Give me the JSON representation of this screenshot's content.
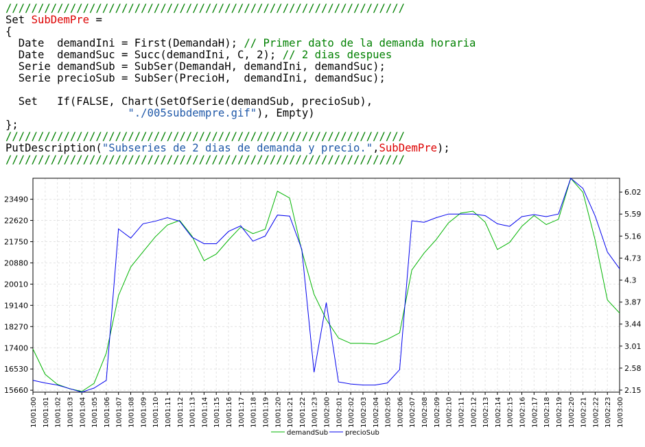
{
  "code": {
    "separator": "//////////////////////////////////////////////////////////////",
    "l1_kw": "Set ",
    "l1_name": "SubDemPre",
    "l1_rest": " =",
    "l2": "{",
    "l3_code": "  Date  demandIni = First(DemandaH); ",
    "l3_comment": "// Primer dato de la demanda horaria",
    "l4_code": "  Date  demandSuc = Succ(demandIni, C, 2); ",
    "l4_comment": "// 2 dias despues",
    "l5": "  Serie demandSub = SubSer(DemandaH, demandIni, demandSuc);",
    "l6": "  Serie precioSub = SubSer(PrecioH,  demandIni, demandSuc);",
    "l7": "",
    "l8": "  Set   If(FALSE, Chart(SetOfSerie(demandSub, precioSub),",
    "l9_indent": "                   ",
    "l9_str": "\"./005subdempre.gif\"",
    "l9_rest": "), Empty)",
    "l10": "};",
    "l12_fn": "PutDescription(",
    "l12_str": "\"Subseries de 2 dias de demanda y precio.\"",
    "l12_comma": ",",
    "l12_name": "SubDemPre",
    "l12_end": ");"
  },
  "colors": {
    "green": "#00b400",
    "blue": "#0000ee",
    "grid": "#e2e2e2"
  },
  "chart_data": {
    "type": "line",
    "x": [
      "10/01:00",
      "10/01:01",
      "10/01:02",
      "10/01:03",
      "10/01:04",
      "10/01:05",
      "10/01:06",
      "10/01:07",
      "10/01:08",
      "10/01:09",
      "10/01:10",
      "10/01:11",
      "10/01:12",
      "10/01:13",
      "10/01:14",
      "10/01:15",
      "10/01:16",
      "10/01:17",
      "10/01:18",
      "10/01:19",
      "10/01:20",
      "10/01:21",
      "10/01:22",
      "10/01:23",
      "10/02:00",
      "10/02:01",
      "10/02:02",
      "10/02:03",
      "10/02:04",
      "10/02:05",
      "10/02:06",
      "10/02:07",
      "10/02:08",
      "10/02:09",
      "10/02:10",
      "10/02:11",
      "10/02:12",
      "10/02:13",
      "10/02:14",
      "10/02:15",
      "10/02:16",
      "10/02:17",
      "10/02:18",
      "10/02:19",
      "10/02:20",
      "10/02:21",
      "10/02:22",
      "10/02:23",
      "10/03:00"
    ],
    "y_left_ticks": [
      "15660",
      "16530",
      "17400",
      "18270",
      "19140",
      "20010",
      "20880",
      "21750",
      "22620",
      "23490"
    ],
    "y_right_ticks": [
      "2.15",
      "2.58",
      "3.01",
      "3.44",
      "3.87",
      "4.3",
      "4.73",
      "5.16",
      "5.59",
      "6.02"
    ],
    "ylim_left": [
      15580,
      24350
    ],
    "ylim_right": [
      2.11,
      6.29
    ],
    "series": [
      {
        "name": "demandSub",
        "axis": "left",
        "values": [
          17350,
          16310,
          15900,
          15720,
          15610,
          15940,
          17180,
          19540,
          20710,
          21330,
          21940,
          22430,
          22620,
          21990,
          20970,
          21240,
          21820,
          22350,
          22080,
          22260,
          23820,
          23540,
          21370,
          19590,
          18560,
          17800,
          17580,
          17580,
          17550,
          17750,
          18010,
          20590,
          21280,
          21840,
          22520,
          22920,
          23000,
          22550,
          21430,
          21720,
          22380,
          22820,
          22450,
          22670,
          24350,
          23770,
          21810,
          19360,
          18820
        ]
      },
      {
        "name": "precioSub",
        "axis": "right",
        "values": [
          2.34,
          2.29,
          2.25,
          2.18,
          2.11,
          2.19,
          2.34,
          5.3,
          5.12,
          5.4,
          5.45,
          5.52,
          5.45,
          5.14,
          5.01,
          5.01,
          5.25,
          5.36,
          5.06,
          5.16,
          5.57,
          5.55,
          4.9,
          2.5,
          3.86,
          2.31,
          2.27,
          2.25,
          2.25,
          2.29,
          2.55,
          5.46,
          5.43,
          5.52,
          5.59,
          5.59,
          5.59,
          5.56,
          5.4,
          5.35,
          5.54,
          5.58,
          5.54,
          5.59,
          6.29,
          6.09,
          5.55,
          4.85,
          4.52
        ]
      }
    ],
    "legend_position": "bottom-center",
    "grid": true
  }
}
